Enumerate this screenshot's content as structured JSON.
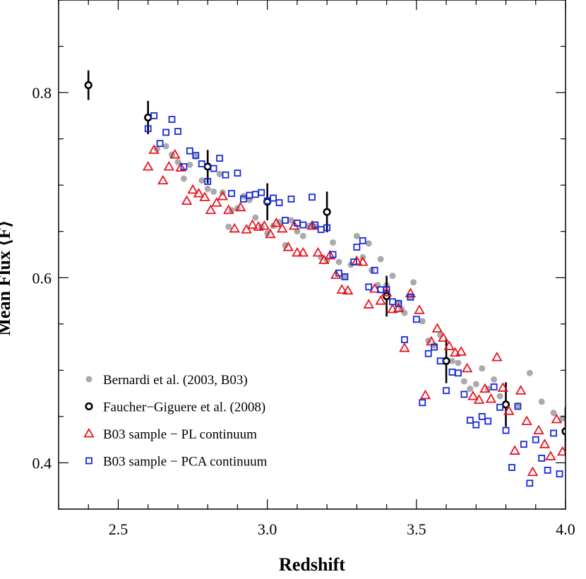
{
  "chart_data": {
    "type": "scatter",
    "title": "",
    "xlabel": "Redshift",
    "ylabel": "Mean Flux ⟨F⟩",
    "xlim": [
      2.3,
      4.0
    ],
    "ylim": [
      0.35,
      0.9
    ],
    "xticks": [
      2.5,
      3.0,
      3.5,
      4.0
    ],
    "xtick_labels": [
      "2.5",
      "3.0",
      "3.5",
      "4.0"
    ],
    "yticks": [
      0.4,
      0.6,
      0.8
    ],
    "ytick_labels": [
      "0.4",
      "0.6",
      "0.8"
    ],
    "grid": false,
    "legend_position": "bottom-left",
    "series": [
      {
        "name": "Bernardi et al. (2003, B03)",
        "marker": "filled-circle",
        "color": "#aaaaaa",
        "points": [
          [
            2.63,
            0.739
          ],
          [
            2.66,
            0.742
          ],
          [
            2.68,
            0.733
          ],
          [
            2.7,
            0.725
          ],
          [
            2.72,
            0.707
          ],
          [
            2.74,
            0.722
          ],
          [
            2.76,
            0.731
          ],
          [
            2.78,
            0.705
          ],
          [
            2.8,
            0.696
          ],
          [
            2.82,
            0.693
          ],
          [
            2.84,
            0.712
          ],
          [
            2.85,
            0.692
          ],
          [
            2.87,
            0.655
          ],
          [
            2.88,
            0.673
          ],
          [
            2.9,
            0.675
          ],
          [
            2.92,
            0.688
          ],
          [
            2.94,
            0.684
          ],
          [
            2.96,
            0.665
          ],
          [
            2.98,
            0.655
          ],
          [
            3.0,
            0.648
          ],
          [
            3.02,
            0.656
          ],
          [
            3.04,
            0.66
          ],
          [
            3.06,
            0.635
          ],
          [
            3.08,
            0.662
          ],
          [
            3.1,
            0.65
          ],
          [
            3.12,
            0.645
          ],
          [
            3.14,
            0.656
          ],
          [
            3.16,
            0.655
          ],
          [
            3.18,
            0.622
          ],
          [
            3.2,
            0.619
          ],
          [
            3.22,
            0.638
          ],
          [
            3.24,
            0.617
          ],
          [
            3.26,
            0.601
          ],
          [
            3.28,
            0.614
          ],
          [
            3.3,
            0.645
          ],
          [
            3.32,
            0.622
          ],
          [
            3.34,
            0.637
          ],
          [
            3.35,
            0.608
          ],
          [
            3.37,
            0.592
          ],
          [
            3.38,
            0.62
          ],
          [
            3.4,
            0.592
          ],
          [
            3.42,
            0.602
          ],
          [
            3.44,
            0.573
          ],
          [
            3.45,
            0.566
          ],
          [
            3.46,
            0.562
          ],
          [
            3.48,
            0.58
          ],
          [
            3.49,
            0.595
          ],
          [
            3.52,
            0.553
          ],
          [
            3.54,
            0.532
          ],
          [
            3.56,
            0.527
          ],
          [
            3.58,
            0.538
          ],
          [
            3.6,
            0.51
          ],
          [
            3.62,
            0.51
          ],
          [
            3.64,
            0.508
          ],
          [
            3.66,
            0.488
          ],
          [
            3.68,
            0.48
          ],
          [
            3.7,
            0.485
          ],
          [
            3.72,
            0.502
          ],
          [
            3.74,
            0.48
          ],
          [
            3.76,
            0.49
          ],
          [
            3.78,
            0.472
          ],
          [
            3.8,
            0.462
          ],
          [
            3.84,
            0.462
          ],
          [
            3.88,
            0.497
          ],
          [
            3.92,
            0.466
          ],
          [
            3.96,
            0.454
          ],
          [
            3.99,
            0.448
          ]
        ]
      },
      {
        "name": "Faucher−Giguere et al. (2008)",
        "marker": "open-circle",
        "color": "#000000",
        "points": [
          [
            2.4,
            0.808,
            0.016
          ],
          [
            2.6,
            0.773,
            0.018
          ],
          [
            2.8,
            0.72,
            0.018
          ],
          [
            3.0,
            0.682,
            0.02
          ],
          [
            3.2,
            0.671,
            0.022
          ],
          [
            3.4,
            0.58,
            0.022
          ],
          [
            3.6,
            0.51,
            0.024
          ],
          [
            3.8,
            0.463,
            0.024
          ],
          [
            4.0,
            0.434,
            0.026
          ]
        ]
      },
      {
        "name": "B03 sample − PL continuum",
        "marker": "open-triangle",
        "color": "#e8141e",
        "points": [
          [
            2.6,
            0.72
          ],
          [
            2.62,
            0.738
          ],
          [
            2.65,
            0.705
          ],
          [
            2.67,
            0.72
          ],
          [
            2.69,
            0.733
          ],
          [
            2.71,
            0.719
          ],
          [
            2.73,
            0.683
          ],
          [
            2.75,
            0.695
          ],
          [
            2.77,
            0.691
          ],
          [
            2.79,
            0.687
          ],
          [
            2.81,
            0.673
          ],
          [
            2.83,
            0.681
          ],
          [
            2.85,
            0.688
          ],
          [
            2.87,
            0.673
          ],
          [
            2.89,
            0.653
          ],
          [
            2.91,
            0.676
          ],
          [
            2.93,
            0.652
          ],
          [
            2.95,
            0.657
          ],
          [
            2.97,
            0.655
          ],
          [
            2.99,
            0.656
          ],
          [
            3.01,
            0.647
          ],
          [
            3.03,
            0.659
          ],
          [
            3.05,
            0.653
          ],
          [
            3.07,
            0.633
          ],
          [
            3.09,
            0.656
          ],
          [
            3.1,
            0.627
          ],
          [
            3.12,
            0.627
          ],
          [
            3.15,
            0.656
          ],
          [
            3.17,
            0.627
          ],
          [
            3.19,
            0.619
          ],
          [
            3.21,
            0.624
          ],
          [
            3.23,
            0.603
          ],
          [
            3.25,
            0.587
          ],
          [
            3.27,
            0.586
          ],
          [
            3.3,
            0.618
          ],
          [
            3.32,
            0.617
          ],
          [
            3.34,
            0.571
          ],
          [
            3.36,
            0.588
          ],
          [
            3.38,
            0.575
          ],
          [
            3.4,
            0.584
          ],
          [
            3.42,
            0.566
          ],
          [
            3.44,
            0.567
          ],
          [
            3.46,
            0.524
          ],
          [
            3.48,
            0.583
          ],
          [
            3.51,
            0.565
          ],
          [
            3.53,
            0.473
          ],
          [
            3.55,
            0.531
          ],
          [
            3.57,
            0.545
          ],
          [
            3.59,
            0.535
          ],
          [
            3.61,
            0.526
          ],
          [
            3.63,
            0.519
          ],
          [
            3.65,
            0.52
          ],
          [
            3.67,
            0.502
          ],
          [
            3.69,
            0.472
          ],
          [
            3.71,
            0.468
          ],
          [
            3.73,
            0.48
          ],
          [
            3.75,
            0.469
          ],
          [
            3.77,
            0.514
          ],
          [
            3.79,
            0.481
          ],
          [
            3.81,
            0.456
          ],
          [
            3.83,
            0.413
          ],
          [
            3.85,
            0.478
          ],
          [
            3.87,
            0.445
          ],
          [
            3.89,
            0.39
          ],
          [
            3.91,
            0.435
          ],
          [
            3.93,
            0.42
          ],
          [
            3.95,
            0.407
          ],
          [
            3.97,
            0.447
          ],
          [
            3.99,
            0.412
          ]
        ]
      },
      {
        "name": "B03 sample − PCA continuum",
        "marker": "open-square",
        "color": "#1428dc",
        "points": [
          [
            2.6,
            0.761
          ],
          [
            2.62,
            0.775
          ],
          [
            2.64,
            0.745
          ],
          [
            2.66,
            0.757
          ],
          [
            2.68,
            0.771
          ],
          [
            2.7,
            0.758
          ],
          [
            2.72,
            0.72
          ],
          [
            2.74,
            0.737
          ],
          [
            2.76,
            0.732
          ],
          [
            2.78,
            0.723
          ],
          [
            2.8,
            0.704
          ],
          [
            2.82,
            0.718
          ],
          [
            2.84,
            0.729
          ],
          [
            2.86,
            0.711
          ],
          [
            2.88,
            0.691
          ],
          [
            2.9,
            0.713
          ],
          [
            2.92,
            0.685
          ],
          [
            2.94,
            0.689
          ],
          [
            2.96,
            0.69
          ],
          [
            2.98,
            0.692
          ],
          [
            3.0,
            0.683
          ],
          [
            3.02,
            0.686
          ],
          [
            3.04,
            0.681
          ],
          [
            3.06,
            0.662
          ],
          [
            3.08,
            0.685
          ],
          [
            3.1,
            0.659
          ],
          [
            3.12,
            0.657
          ],
          [
            3.15,
            0.687
          ],
          [
            3.16,
            0.657
          ],
          [
            3.18,
            0.652
          ],
          [
            3.2,
            0.654
          ],
          [
            3.22,
            0.625
          ],
          [
            3.24,
            0.605
          ],
          [
            3.26,
            0.601
          ],
          [
            3.29,
            0.617
          ],
          [
            3.3,
            0.633
          ],
          [
            3.32,
            0.64
          ],
          [
            3.34,
            0.59
          ],
          [
            3.36,
            0.608
          ],
          [
            3.38,
            0.587
          ],
          [
            3.4,
            0.587
          ],
          [
            3.42,
            0.574
          ],
          [
            3.44,
            0.572
          ],
          [
            3.46,
            0.533
          ],
          [
            3.48,
            0.579
          ],
          [
            3.5,
            0.555
          ],
          [
            3.52,
            0.465
          ],
          [
            3.54,
            0.518
          ],
          [
            3.56,
            0.525
          ],
          [
            3.58,
            0.51
          ],
          [
            3.6,
            0.478
          ],
          [
            3.62,
            0.498
          ],
          [
            3.64,
            0.497
          ],
          [
            3.66,
            0.474
          ],
          [
            3.68,
            0.446
          ],
          [
            3.7,
            0.441
          ],
          [
            3.72,
            0.45
          ],
          [
            3.74,
            0.445
          ],
          [
            3.76,
            0.482
          ],
          [
            3.78,
            0.46
          ],
          [
            3.8,
            0.435
          ],
          [
            3.82,
            0.395
          ],
          [
            3.84,
            0.461
          ],
          [
            3.86,
            0.42
          ],
          [
            3.88,
            0.378
          ],
          [
            3.9,
            0.425
          ],
          [
            3.92,
            0.405
          ],
          [
            3.94,
            0.392
          ],
          [
            3.96,
            0.432
          ],
          [
            3.98,
            0.388
          ]
        ]
      }
    ]
  }
}
